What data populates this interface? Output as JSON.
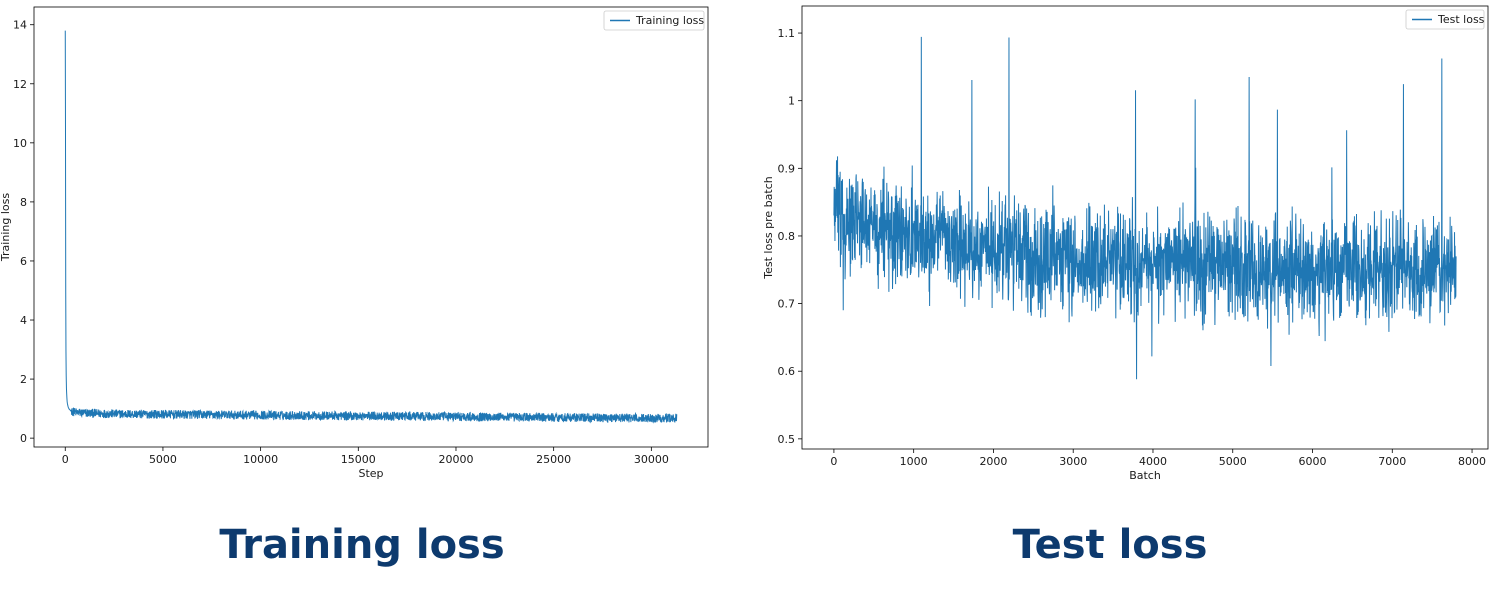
{
  "captions": {
    "left": "Training loss",
    "right": "Test loss"
  },
  "colors": {
    "series": "#1f77b4",
    "caption": "#0d3a6e"
  },
  "chart_data": [
    {
      "type": "line",
      "xlabel": "Step",
      "ylabel": "Training loss",
      "xlim": [
        -1600,
        32900
      ],
      "ylim": [
        -0.3,
        14.6
      ],
      "xticks": [
        0,
        5000,
        10000,
        15000,
        20000,
        25000,
        30000
      ],
      "yticks": [
        0,
        2,
        4,
        6,
        8,
        10,
        12,
        14
      ],
      "legend": "top-right",
      "grid": false,
      "series": [
        {
          "name": "Training loss",
          "x": [
            0,
            5,
            10,
            15,
            20,
            30,
            40,
            50,
            60,
            80,
            100,
            150,
            200,
            300,
            500,
            800,
            1000,
            1500,
            2000,
            3000,
            4000,
            5000,
            6000,
            7000,
            8000,
            9000,
            10000,
            11000,
            12000,
            13000,
            14000,
            15000,
            16000,
            17000,
            18000,
            19000,
            20000,
            21000,
            22000,
            23000,
            24000,
            25000,
            26000,
            27000,
            28000,
            29000,
            30000,
            31000,
            31300
          ],
          "values": [
            13.8,
            13.0,
            11.5,
            9.0,
            6.0,
            3.5,
            2.6,
            2.0,
            1.7,
            1.4,
            1.2,
            1.05,
            0.98,
            0.92,
            0.88,
            0.86,
            0.85,
            0.84,
            0.83,
            0.82,
            0.81,
            0.81,
            0.8,
            0.8,
            0.79,
            0.78,
            0.78,
            0.77,
            0.77,
            0.76,
            0.76,
            0.75,
            0.75,
            0.74,
            0.74,
            0.73,
            0.73,
            0.72,
            0.72,
            0.71,
            0.71,
            0.7,
            0.7,
            0.69,
            0.69,
            0.68,
            0.68,
            0.68,
            0.68
          ],
          "noise_band": 0.15
        }
      ]
    },
    {
      "type": "line",
      "xlabel": "Batch",
      "ylabel": "Test loss pre batch",
      "xlim": [
        -400,
        8200
      ],
      "ylim": [
        0.485,
        1.14
      ],
      "xticks": [
        0,
        1000,
        2000,
        3000,
        4000,
        5000,
        6000,
        7000,
        8000
      ],
      "yticks": [
        0.5,
        0.6,
        0.7,
        0.8,
        0.9,
        1.0,
        1.1
      ],
      "legend": "top-right",
      "grid": false,
      "series": [
        {
          "name": "Test loss",
          "x": [
            0,
            500,
            1000,
            1500,
            2000,
            3000,
            4000,
            5000,
            6000,
            7000,
            7800
          ],
          "values": [
            0.84,
            0.81,
            0.8,
            0.79,
            0.775,
            0.765,
            0.76,
            0.755,
            0.75,
            0.75,
            0.75
          ],
          "noise_band": 0.07,
          "min": 0.52,
          "max": 1.12
        }
      ]
    }
  ]
}
